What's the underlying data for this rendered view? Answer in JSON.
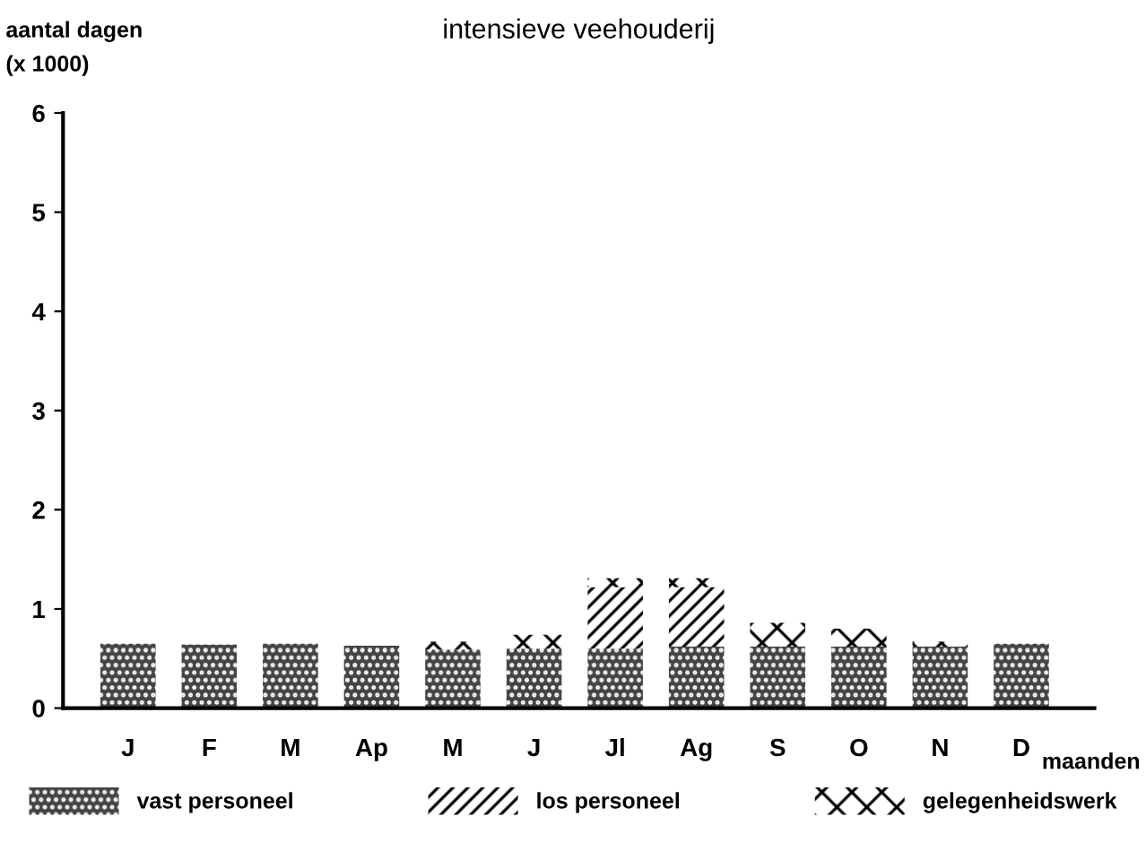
{
  "chart_data": {
    "type": "bar",
    "title": "intensieve veehouderij",
    "ylabel": "aantal dagen\n(x 1000)",
    "xlabel": "maanden",
    "stacked": true,
    "categories": [
      "J",
      "F",
      "M",
      "Ap",
      "M",
      "J",
      "Jl",
      "Ag",
      "S",
      "O",
      "N",
      "D"
    ],
    "series": [
      {
        "name": "vast personeel",
        "color": "#444444",
        "values": [
          0.65,
          0.64,
          0.65,
          0.63,
          0.59,
          0.6,
          0.6,
          0.62,
          0.62,
          0.62,
          0.62,
          0.65
        ]
      },
      {
        "name": "los personeel",
        "color": "#ffffff",
        "values": [
          null,
          null,
          null,
          null,
          null,
          null,
          0.62,
          0.6,
          null,
          null,
          null,
          null
        ]
      },
      {
        "name": "gelegenheidswerk",
        "color": "#ffffff",
        "values": [
          null,
          null,
          null,
          null,
          0.08,
          0.14,
          0.09,
          0.09,
          0.24,
          0.18,
          0.05,
          null
        ]
      }
    ],
    "ylim": [
      0,
      6
    ],
    "yticks": [
      0,
      1,
      2,
      3,
      4,
      5,
      6
    ],
    "grid": false,
    "legend": "bottom"
  }
}
